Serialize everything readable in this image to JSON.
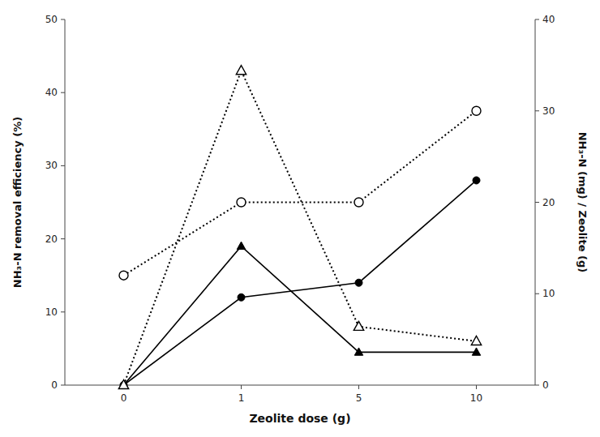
{
  "chart_data": {
    "type": "line",
    "x_label": "Zeolite dose (g)",
    "y_label": "NH₃-N removal efficiency (%)",
    "y2_label": "NH₃-N (mg) / Zeolite (g)",
    "categories": [
      "0",
      "1",
      "5",
      "10"
    ],
    "series": [
      {
        "color": "#000000",
        "marker": "circle",
        "line_style": "solid",
        "values": [
          0,
          12,
          14,
          28
        ]
      },
      {
        "color": "#000000",
        "marker": "triangle",
        "line_style": "solid",
        "values": [
          0,
          19,
          4.5,
          4.5
        ]
      },
      {
        "color": "#000000",
        "marker": "triangle-open",
        "line_style": "dotted",
        "values": [
          0,
          43,
          8,
          6
        ]
      },
      {
        "color": "#000000",
        "marker": "circle-open",
        "line_style": "dotted",
        "axis": "y2",
        "values": [
          12,
          20,
          20,
          30
        ]
      }
    ],
    "ylim": [
      0,
      50
    ],
    "yticks": [
      0,
      10,
      20,
      30,
      40,
      50
    ],
    "y2lim": [
      0,
      40
    ],
    "y2ticks": [
      0,
      10,
      20,
      30,
      40
    ],
    "grid": false
  }
}
